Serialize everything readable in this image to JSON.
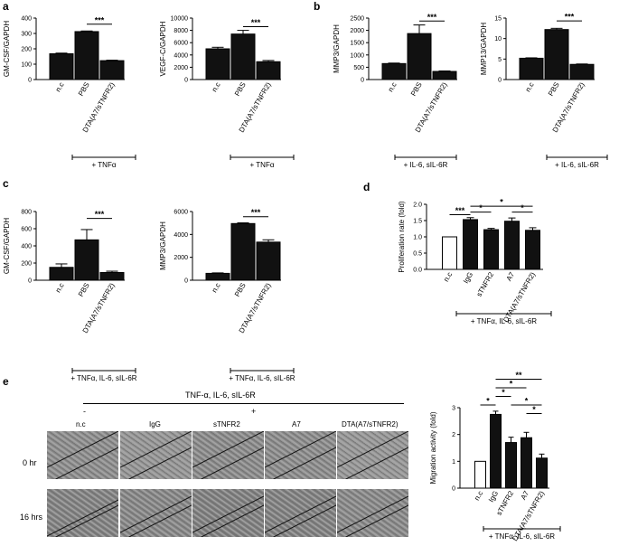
{
  "panels": {
    "a": "a",
    "b": "b",
    "c": "c",
    "d": "d",
    "e": "e"
  },
  "chart_data": [
    {
      "id": "a1",
      "type": "bar",
      "categories": [
        "n.c",
        "PBS",
        "DTA(A7/sTNFR2)"
      ],
      "values": [
        168,
        312,
        123
      ],
      "errors": [
        4,
        4,
        3
      ],
      "fills": [
        "#111",
        "#111",
        "#111"
      ],
      "ylabel": "GM-CSF/GAPDH",
      "ylim": [
        0,
        400
      ],
      "ticks": [
        0,
        100,
        200,
        300,
        400
      ],
      "sig": [
        {
          "from": 1,
          "to": 2,
          "label": "***",
          "level": 360
        }
      ],
      "condition": "+ TNFα"
    },
    {
      "id": "a2",
      "type": "bar",
      "categories": [
        "n.c",
        "PBS",
        "DTA(A7/sTNFR2)"
      ],
      "values": [
        5000,
        7400,
        2900
      ],
      "errors": [
        250,
        600,
        200
      ],
      "fills": [
        "#111",
        "#111",
        "#111"
      ],
      "ylabel": "VEGF-C/GAPDH",
      "ylim": [
        0,
        10000
      ],
      "ticks": [
        0,
        2000,
        4000,
        6000,
        8000,
        10000
      ],
      "sig": [
        {
          "from": 1,
          "to": 2,
          "label": "***",
          "level": 8600
        }
      ],
      "condition": "+ TNFα"
    },
    {
      "id": "b1",
      "type": "bar",
      "categories": [
        "n.c",
        "PBS",
        "DTA(A7/sTNFR2)"
      ],
      "values": [
        650,
        1870,
        330
      ],
      "errors": [
        20,
        350,
        20
      ],
      "fills": [
        "#111",
        "#111",
        "#111"
      ],
      "ylabel": "MMP3/GAPDH",
      "ylim": [
        0,
        2500
      ],
      "ticks": [
        0,
        500,
        1000,
        1500,
        2000,
        2500
      ],
      "sig": [
        {
          "from": 1,
          "to": 2,
          "label": "***",
          "level": 2380
        }
      ],
      "condition": "+ IL-6, sIL-6R"
    },
    {
      "id": "b2",
      "type": "bar",
      "categories": [
        "n.c",
        "PBS",
        "DTA(A7/sTNFR2)"
      ],
      "values": [
        5.2,
        12.2,
        3.7
      ],
      "errors": [
        0.1,
        0.3,
        0.1
      ],
      "fills": [
        "#111",
        "#111",
        "#111"
      ],
      "ylabel": "MMP13/GAPDH",
      "ylim": [
        0,
        15
      ],
      "ticks": [
        0,
        5,
        10,
        15
      ],
      "sig": [
        {
          "from": 1,
          "to": 2,
          "label": "***",
          "level": 14.3
        }
      ],
      "condition": "+ IL-6, sIL-6R"
    },
    {
      "id": "c1",
      "type": "bar",
      "categories": [
        "n.c",
        "PBS",
        "DTA(A7/sTNFR2)"
      ],
      "values": [
        150,
        470,
        90
      ],
      "errors": [
        40,
        120,
        15
      ],
      "fills": [
        "#111",
        "#111",
        "#111"
      ],
      "ylabel": "GM-CSF/GAPDH",
      "ylim": [
        0,
        800
      ],
      "ticks": [
        0,
        200,
        400,
        600,
        800
      ],
      "sig": [
        {
          "from": 1,
          "to": 2,
          "label": "***",
          "level": 720
        }
      ],
      "condition": "+ TNFα, IL-6, sIL-6R"
    },
    {
      "id": "c2",
      "type": "bar",
      "categories": [
        "n.c",
        "PBS",
        "DTA(A7/sTNFR2)"
      ],
      "values": [
        600,
        4950,
        3330
      ],
      "errors": [
        40,
        60,
        200
      ],
      "fills": [
        "#111",
        "#111",
        "#111"
      ],
      "ylabel": "MMP3/GAPDH",
      "ylim": [
        0,
        6000
      ],
      "ticks": [
        0,
        2000,
        4000,
        6000
      ],
      "sig": [
        {
          "from": 1,
          "to": 2,
          "label": "***",
          "level": 5550
        }
      ],
      "condition": "+ TNFα, IL-6, sIL-6R"
    },
    {
      "id": "d",
      "type": "bar",
      "categories": [
        "n.c",
        "IgG",
        "sTNFR2",
        "A7",
        "DTA(A7/sTNFR2)"
      ],
      "values": [
        1.0,
        1.53,
        1.22,
        1.48,
        1.2
      ],
      "errors": [
        0,
        0.06,
        0.04,
        0.1,
        0.08
      ],
      "fills": [
        "#fff",
        "#111",
        "#111",
        "#111",
        "#111"
      ],
      "ylabel": "Proliferation rate (fold)",
      "ylim": [
        0,
        2.0
      ],
      "ticks": [
        0,
        0.5,
        1.0,
        1.5,
        2.0
      ],
      "ticklabels": [
        "0.0",
        "0.5",
        "1.0",
        "1.5",
        "2.0"
      ],
      "sig": [
        {
          "from": 0,
          "to": 1,
          "label": "***",
          "level": 1.68
        },
        {
          "from": 1,
          "to": 2,
          "label": "*",
          "level": 1.76
        },
        {
          "from": 1,
          "to": 4,
          "label": "*",
          "level": 1.94
        },
        {
          "from": 3,
          "to": 4,
          "label": "*",
          "level": 1.76
        }
      ],
      "condition": "+ TNFα, IL-6, sIL-6R"
    },
    {
      "id": "e",
      "type": "bar",
      "categories": [
        "n.c",
        "IgG",
        "sTNFR2",
        "A7",
        "DTA(A7/sTNFR2)"
      ],
      "values": [
        1.0,
        2.75,
        1.7,
        1.88,
        1.12
      ],
      "errors": [
        0,
        0.12,
        0.2,
        0.2,
        0.15
      ],
      "fills": [
        "#fff",
        "#111",
        "#111",
        "#111",
        "#111"
      ],
      "ylabel": "Migration activity (fold)",
      "ylim": [
        0,
        3
      ],
      "ticks": [
        0,
        1,
        2,
        3
      ],
      "sig": [
        {
          "from": 0,
          "to": 1,
          "label": "*",
          "level": 3.1
        },
        {
          "from": 1,
          "to": 2,
          "label": "*",
          "level": 3.42
        },
        {
          "from": 1,
          "to": 3,
          "label": "*",
          "level": 3.74
        },
        {
          "from": 1,
          "to": 4,
          "label": "**",
          "level": 4.06
        },
        {
          "from": 2,
          "to": 4,
          "label": "*",
          "level": 3.1
        },
        {
          "from": 3,
          "to": 4,
          "label": "*",
          "level": 2.78
        }
      ],
      "condition": "+ TNFα, IL-6, sIL-6R"
    }
  ],
  "micrographs": {
    "header": "TNF-α, IL-6, sIL-6R",
    "minus": "-",
    "plus": "+",
    "columns": [
      "n.c",
      "IgG",
      "sTNFR2",
      "A7",
      "DTA(A7/sTNFR2)"
    ],
    "rows": [
      "0 hr",
      "16 hrs"
    ]
  }
}
